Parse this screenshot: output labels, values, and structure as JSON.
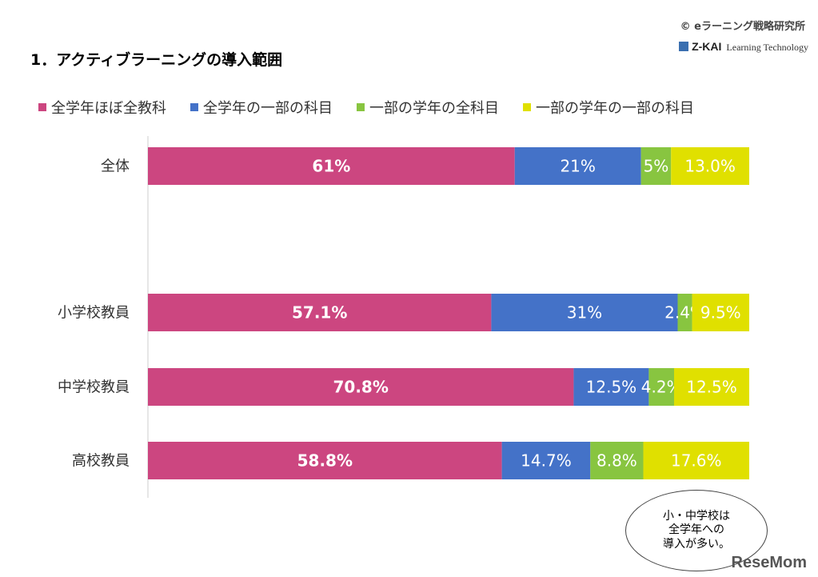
{
  "header": {
    "title": "1．アクティブラーニングの導入範囲",
    "copyright": "© eラーニング戦略研究所",
    "logo": "Z-KAI",
    "logo_sub": "Learning Technology"
  },
  "chart_data": {
    "type": "bar",
    "orientation": "horizontal",
    "stacked": true,
    "percent": true,
    "categories": [
      "全体",
      "小学校教員",
      "中学校教員",
      "高校教員"
    ],
    "series": [
      {
        "name": "全学年ほぼ全教科",
        "color": "#cc4680",
        "values": [
          61,
          57.1,
          70.8,
          58.8
        ],
        "labels": [
          "61%",
          "57.1%",
          "70.8%",
          "58.8%"
        ]
      },
      {
        "name": "全学年の一部の科目",
        "color": "#4472c8",
        "values": [
          21,
          31,
          12.5,
          14.7
        ],
        "labels": [
          "21%",
          "31%",
          "12.5%",
          "14.7%"
        ]
      },
      {
        "name": "一部の学年の全科目",
        "color": "#88c540",
        "values": [
          5,
          2.4,
          4.2,
          8.8
        ],
        "labels": [
          "5%",
          "2.4%",
          "4.2%",
          "8.8%"
        ]
      },
      {
        "name": "一部の学年の一部の科目",
        "color": "#e0e000",
        "values": [
          13.0,
          9.5,
          12.5,
          17.6
        ],
        "labels": [
          "13.0%",
          "9.5%",
          "12.5%",
          "17.6%"
        ]
      }
    ],
    "legend": "top"
  },
  "callout": "小・中学校は\n全学年への\n導入が多い。",
  "watermark": "ReseMom"
}
